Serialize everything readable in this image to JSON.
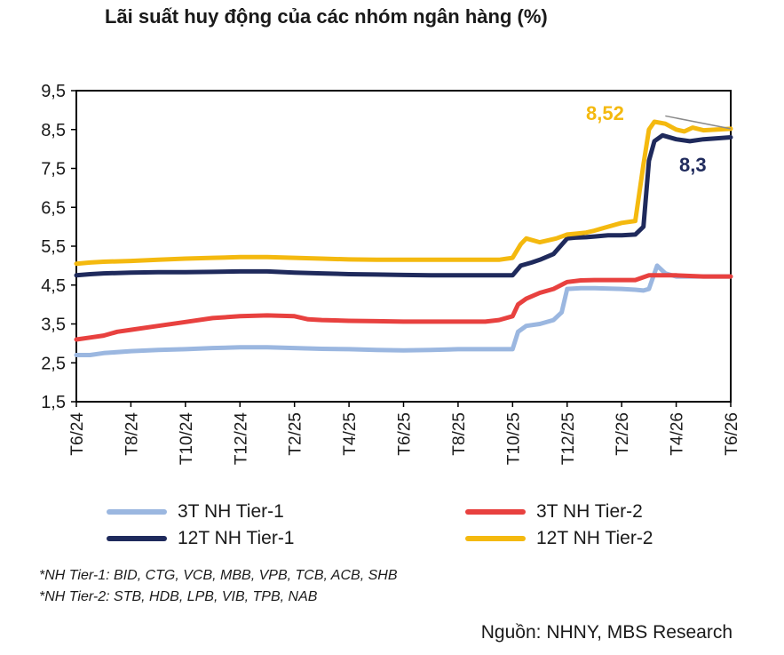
{
  "chart_data": {
    "type": "line",
    "title": "Lãi suất huy động của các nhóm ngân hàng (%)",
    "ylim": [
      1.5,
      9.5
    ],
    "yticks": [
      "9,5",
      "8,5",
      "7,5",
      "6,5",
      "5,5",
      "4,5",
      "3,5",
      "2,5",
      "1,5"
    ],
    "ytick_values": [
      9.5,
      8.5,
      7.5,
      6.5,
      5.5,
      4.5,
      3.5,
      2.5,
      1.5
    ],
    "xlim": [
      0,
      24
    ],
    "xticks": [
      "T6/24",
      "T8/24",
      "T10/24",
      "T12/24",
      "T2/25",
      "T4/25",
      "T6/25",
      "T8/25",
      "T10/25",
      "T12/25",
      "T2/26",
      "T4/26",
      "T6/26"
    ],
    "xtick_values": [
      0,
      2,
      4,
      6,
      8,
      10,
      12,
      14,
      16,
      18,
      20,
      22,
      24
    ],
    "grid": false,
    "legend_position": "bottom",
    "series": [
      {
        "name": "3T NH Tier-1",
        "color": "#9bb7e0",
        "x": [
          0,
          0.5,
          1,
          2,
          3,
          4,
          5,
          6,
          7,
          8,
          9,
          10,
          11,
          12,
          13,
          14,
          15,
          15.5,
          16,
          16.2,
          16.5,
          17,
          17.5,
          17.8,
          18,
          18.5,
          19,
          20,
          20.5,
          20.8,
          21,
          21.3,
          21.6,
          22,
          23,
          24
        ],
        "y": [
          2.7,
          2.7,
          2.75,
          2.8,
          2.83,
          2.85,
          2.88,
          2.9,
          2.9,
          2.88,
          2.86,
          2.85,
          2.83,
          2.82,
          2.83,
          2.85,
          2.85,
          2.85,
          2.85,
          3.3,
          3.45,
          3.5,
          3.6,
          3.8,
          4.4,
          4.42,
          4.42,
          4.4,
          4.38,
          4.36,
          4.4,
          5.0,
          4.8,
          4.72,
          4.72,
          4.72
        ]
      },
      {
        "name": "3T NH Tier-2",
        "color": "#e8413f",
        "x": [
          0,
          0.5,
          1,
          1.5,
          2,
          3,
          4,
          5,
          6,
          7,
          8,
          8.5,
          9,
          10,
          11,
          12,
          13,
          14,
          15,
          15.5,
          16,
          16.2,
          16.5,
          17,
          17.5,
          18,
          18.5,
          19,
          20,
          20.5,
          21,
          22,
          23,
          24
        ],
        "y": [
          3.1,
          3.15,
          3.2,
          3.3,
          3.35,
          3.45,
          3.55,
          3.65,
          3.7,
          3.72,
          3.7,
          3.62,
          3.6,
          3.58,
          3.57,
          3.56,
          3.56,
          3.56,
          3.56,
          3.6,
          3.7,
          4.0,
          4.15,
          4.3,
          4.4,
          4.58,
          4.62,
          4.63,
          4.63,
          4.63,
          4.75,
          4.75,
          4.72,
          4.72
        ]
      },
      {
        "name": "12T NH Tier-1",
        "color": "#1f2a5c",
        "x": [
          0,
          0.5,
          1,
          2,
          3,
          4,
          5,
          6,
          7,
          8,
          9,
          10,
          11,
          12,
          13,
          14,
          15,
          15.5,
          16,
          16.3,
          16.7,
          17,
          17.5,
          18,
          18.3,
          18.7,
          19,
          19.5,
          20,
          20.5,
          20.8,
          21,
          21.2,
          21.5,
          22,
          22.5,
          23,
          24
        ],
        "y": [
          4.75,
          4.78,
          4.8,
          4.82,
          4.83,
          4.83,
          4.84,
          4.85,
          4.85,
          4.82,
          4.8,
          4.78,
          4.77,
          4.76,
          4.75,
          4.75,
          4.75,
          4.75,
          4.75,
          5.0,
          5.08,
          5.15,
          5.3,
          5.7,
          5.72,
          5.73,
          5.75,
          5.78,
          5.78,
          5.8,
          6.0,
          7.7,
          8.2,
          8.35,
          8.25,
          8.2,
          8.25,
          8.3
        ]
      },
      {
        "name": "12T NH Tier-2",
        "color": "#f4b90f",
        "x": [
          0,
          0.5,
          1,
          2,
          3,
          4,
          5,
          6,
          7,
          8,
          9,
          10,
          11,
          12,
          13,
          14,
          15,
          15.5,
          16,
          16.3,
          16.5,
          17,
          17.3,
          17.6,
          18,
          18.3,
          18.7,
          19,
          19.5,
          20,
          20.5,
          20.8,
          21,
          21.2,
          21.6,
          22,
          22.3,
          22.6,
          23,
          23.5,
          24
        ],
        "y": [
          5.05,
          5.08,
          5.1,
          5.12,
          5.15,
          5.18,
          5.2,
          5.22,
          5.22,
          5.2,
          5.18,
          5.16,
          5.15,
          5.15,
          5.15,
          5.15,
          5.15,
          5.15,
          5.2,
          5.55,
          5.7,
          5.6,
          5.65,
          5.7,
          5.8,
          5.82,
          5.85,
          5.9,
          6.0,
          6.1,
          6.15,
          7.6,
          8.5,
          8.7,
          8.65,
          8.5,
          8.45,
          8.55,
          8.48,
          8.5,
          8.52
        ]
      }
    ],
    "annotations": [
      {
        "text": "8,52",
        "series": "12T NH Tier-2",
        "x": 24,
        "y": 8.52
      },
      {
        "text": "8,3",
        "series": "12T NH Tier-1",
        "x": 24,
        "y": 8.3
      }
    ]
  },
  "legend": [
    {
      "label": "3T NH Tier-1",
      "color": "#9bb7e0"
    },
    {
      "label": "3T NH Tier-2",
      "color": "#e8413f"
    },
    {
      "label": "12T NH Tier-1",
      "color": "#1f2a5c"
    },
    {
      "label": "12T NH Tier-2",
      "color": "#f4b90f"
    }
  ],
  "notes": {
    "tier1": "*NH Tier-1: BID, CTG, VCB, MBB, VPB, TCB, ACB, SHB",
    "tier2": "*NH Tier-2: STB, HDB, LPB, VIB, TPB, NAB"
  },
  "source": "Nguồn: NHNY, MBS Research"
}
